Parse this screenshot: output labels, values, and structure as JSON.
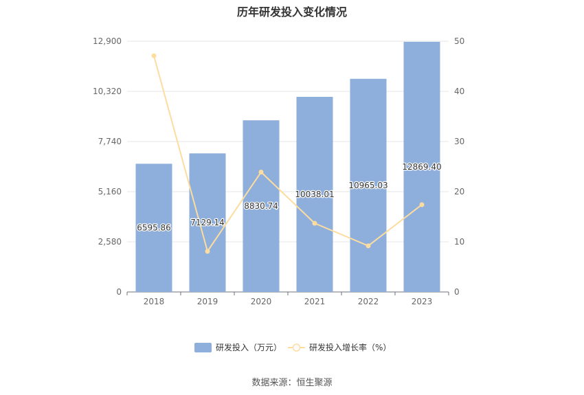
{
  "chart_data": {
    "type": "bar",
    "title": "历年研发投入变化情况",
    "categories": [
      "2018",
      "2019",
      "2020",
      "2021",
      "2022",
      "2023"
    ],
    "series": [
      {
        "name": "研发投入（万元）",
        "type": "bar",
        "axis": "left",
        "values": [
          6595.86,
          7129.14,
          8830.74,
          10038.01,
          10965.03,
          12869.4
        ],
        "labels": [
          "6595.86",
          "7129.14",
          "8830.74",
          "10038.01",
          "10965.03",
          "12869.40"
        ],
        "color": "#8eaedb"
      },
      {
        "name": "研发投入增长率（%）",
        "type": "line",
        "axis": "right",
        "values": [
          47.1,
          8.1,
          23.9,
          13.7,
          9.2,
          17.4
        ],
        "color": "#fddca0"
      }
    ],
    "y_left": {
      "ticks": [
        "0",
        "2,580",
        "5,160",
        "7,740",
        "10,320",
        "12,900"
      ],
      "ylim": [
        0,
        12900
      ]
    },
    "y_right": {
      "ticks": [
        "0",
        "10",
        "20",
        "30",
        "40",
        "50"
      ],
      "ylim": [
        0,
        50
      ]
    },
    "grid": true,
    "legend_position": "bottom"
  },
  "source": "数据来源：恒生聚源"
}
